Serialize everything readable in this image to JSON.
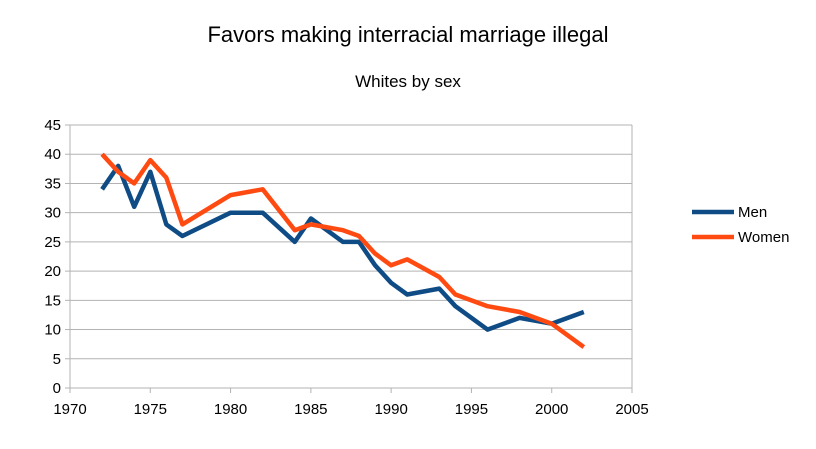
{
  "chart_data": {
    "type": "line",
    "title": "Favors making interracial marriage illegal",
    "subtitle": "Whites by sex",
    "xlabel": "",
    "ylabel": "",
    "xlim": [
      1970,
      2005
    ],
    "ylim": [
      0,
      45
    ],
    "x_ticks": [
      1970,
      1975,
      1980,
      1985,
      1990,
      1995,
      2000,
      2005
    ],
    "y_ticks": [
      0,
      5,
      10,
      15,
      20,
      25,
      30,
      35,
      40,
      45
    ],
    "grid": true,
    "legend_position": "right",
    "series": [
      {
        "name": "Men",
        "color": "#0f4c85",
        "points": [
          [
            1972,
            34
          ],
          [
            1973,
            38
          ],
          [
            1974,
            31
          ],
          [
            1975,
            37
          ],
          [
            1976,
            28
          ],
          [
            1977,
            26
          ],
          [
            1980,
            30
          ],
          [
            1982,
            30
          ],
          [
            1984,
            25
          ],
          [
            1985,
            29
          ],
          [
            1987,
            25
          ],
          [
            1988,
            25
          ],
          [
            1989,
            21
          ],
          [
            1990,
            18
          ],
          [
            1991,
            16
          ],
          [
            1993,
            17
          ],
          [
            1994,
            14
          ],
          [
            1996,
            10
          ],
          [
            1998,
            12
          ],
          [
            2000,
            11
          ],
          [
            2002,
            13
          ]
        ]
      },
      {
        "name": "Women",
        "color": "#ff4a12",
        "points": [
          [
            1972,
            40
          ],
          [
            1973,
            37
          ],
          [
            1974,
            35
          ],
          [
            1975,
            39
          ],
          [
            1976,
            36
          ],
          [
            1977,
            28
          ],
          [
            1980,
            33
          ],
          [
            1982,
            34
          ],
          [
            1984,
            27
          ],
          [
            1985,
            28
          ],
          [
            1987,
            27
          ],
          [
            1988,
            26
          ],
          [
            1989,
            23
          ],
          [
            1990,
            21
          ],
          [
            1991,
            22
          ],
          [
            1993,
            19
          ],
          [
            1994,
            16
          ],
          [
            1996,
            14
          ],
          [
            1998,
            13
          ],
          [
            2000,
            11
          ],
          [
            2002,
            7
          ]
        ]
      }
    ]
  }
}
